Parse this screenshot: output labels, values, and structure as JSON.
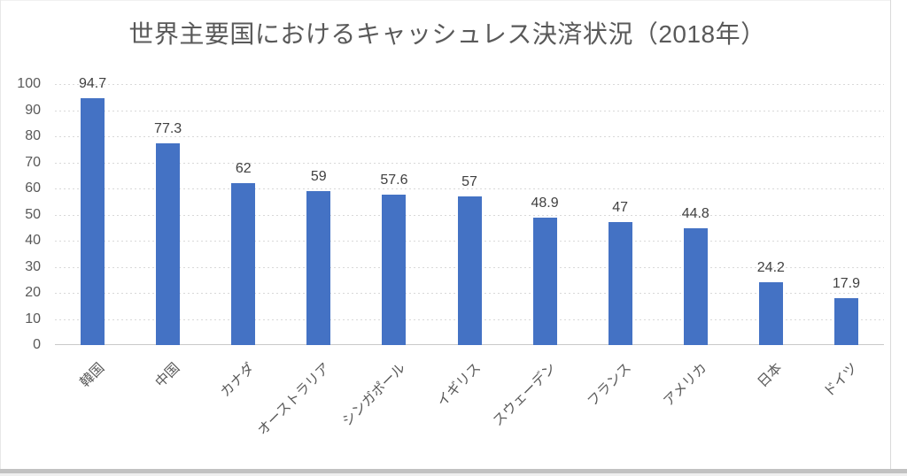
{
  "chart_data": {
    "type": "bar",
    "title": "世界主要国におけるキャッシュレス決済状況（2018年）",
    "categories": [
      "韓国",
      "中国",
      "カナダ",
      "オーストラリア",
      "シンガポール",
      "イギリス",
      "スウェーデン",
      "フランス",
      "アメリカ",
      "日本",
      "ドイツ"
    ],
    "values": [
      94.7,
      77.3,
      62,
      59,
      57.6,
      57,
      48.9,
      47,
      44.8,
      24.2,
      17.9
    ],
    "value_labels": [
      "94.7",
      "77.3",
      "62",
      "59",
      "57.6",
      "57",
      "48.9",
      "47",
      "44.8",
      "24.2",
      "17.9"
    ],
    "xlabel": "",
    "ylabel": "",
    "ylim": [
      0,
      100
    ],
    "yticks": [
      0,
      10,
      20,
      30,
      40,
      50,
      60,
      70,
      80,
      90,
      100
    ],
    "grid": true,
    "gridline_style": "dotted",
    "legend": false,
    "bar_color": "#4472C4",
    "title_color": "#595959",
    "axis_label_color": "#595959",
    "category_label_color": "#595959",
    "data_label_color": "#404040"
  }
}
